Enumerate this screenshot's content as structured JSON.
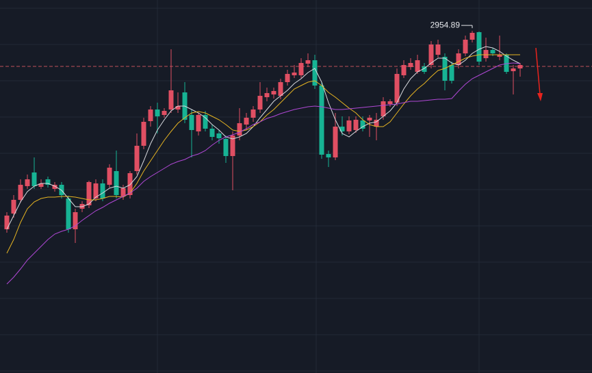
{
  "chart_data": {
    "type": "candlestick",
    "ylim": [
      2455,
      3000
    ],
    "up_color": "#e04f63",
    "down_color": "#17b394",
    "open": [
      2665,
      2688,
      2708,
      2728,
      2748,
      2727,
      2738,
      2724,
      2730,
      2710,
      2665,
      2695,
      2700,
      2710,
      2732,
      2730,
      2750,
      2713,
      2715,
      2750,
      2787,
      2823,
      2840,
      2832,
      2840,
      2840,
      2865,
      2832,
      2808,
      2832,
      2812,
      2805,
      2797,
      2772,
      2802,
      2818,
      2828,
      2840,
      2858,
      2862,
      2860,
      2880,
      2890,
      2890,
      2907,
      2912,
      2875,
      2775,
      2770,
      2815,
      2808,
      2810,
      2824,
      2824,
      2815,
      2830,
      2848,
      2850,
      2890,
      2902,
      2895,
      2903,
      2905,
      2920,
      2917,
      2905,
      2905,
      2922,
      2942,
      2953,
      2915,
      2927,
      2917,
      2920,
      2896,
      2900
    ],
    "high": [
      2690,
      2715,
      2738,
      2745,
      2770,
      2738,
      2742,
      2734,
      2734,
      2714,
      2695,
      2706,
      2736,
      2738,
      2738,
      2760,
      2780,
      2730,
      2750,
      2805,
      2828,
      2845,
      2850,
      2842,
      2928,
      2865,
      2880,
      2840,
      2835,
      2838,
      2818,
      2810,
      2802,
      2808,
      2842,
      2835,
      2845,
      2880,
      2872,
      2872,
      2885,
      2898,
      2905,
      2915,
      2922,
      2920,
      2880,
      2780,
      2835,
      2830,
      2830,
      2830,
      2830,
      2832,
      2835,
      2858,
      2855,
      2900,
      2912,
      2915,
      2920,
      2908,
      2940,
      2942,
      2922,
      2910,
      2928,
      2948,
      2954.89,
      2954,
      2945,
      2930,
      2948,
      2922,
      2905,
      2908
    ],
    "low": [
      2660,
      2682,
      2704,
      2724,
      2724,
      2724,
      2726,
      2720,
      2710,
      2660,
      2645,
      2690,
      2696,
      2706,
      2706,
      2726,
      2710,
      2708,
      2710,
      2745,
      2782,
      2815,
      2805,
      2828,
      2835,
      2835,
      2820,
      2770,
      2802,
      2808,
      2795,
      2790,
      2762,
      2722,
      2795,
      2810,
      2822,
      2835,
      2852,
      2856,
      2855,
      2875,
      2886,
      2886,
      2902,
      2870,
      2768,
      2756,
      2766,
      2802,
      2804,
      2806,
      2808,
      2800,
      2795,
      2825,
      2844,
      2845,
      2886,
      2898,
      2892,
      2892,
      2900,
      2916,
      2868,
      2878,
      2900,
      2918,
      2938,
      2905,
      2910,
      2918,
      2912,
      2892,
      2862,
      2888
    ],
    "close": [
      2685,
      2708,
      2730,
      2738,
      2728,
      2732,
      2730,
      2730,
      2715,
      2665,
      2690,
      2702,
      2734,
      2732,
      2710,
      2755,
      2715,
      2725,
      2747,
      2787,
      2822,
      2840,
      2830,
      2838,
      2868,
      2845,
      2825,
      2810,
      2832,
      2812,
      2800,
      2798,
      2772,
      2802,
      2820,
      2828,
      2840,
      2860,
      2864,
      2867,
      2880,
      2892,
      2894,
      2908,
      2912,
      2875,
      2774,
      2770,
      2815,
      2808,
      2824,
      2825,
      2812,
      2828,
      2825,
      2852,
      2852,
      2892,
      2905,
      2908,
      2912,
      2895,
      2935,
      2935,
      2882,
      2882,
      2922,
      2942,
      2952,
      2910,
      2927,
      2922,
      2920,
      2895,
      2900,
      2905
    ],
    "lines": [
      {
        "color": "#d9dbe0",
        "values": [
          2665,
          2685,
          2705,
          2720,
          2728,
          2732,
          2732,
          2728,
          2722,
          2710,
          2698,
          2698,
          2702,
          2712,
          2718,
          2725,
          2728,
          2725,
          2730,
          2742,
          2765,
          2790,
          2810,
          2825,
          2838,
          2845,
          2845,
          2840,
          2835,
          2828,
          2818,
          2810,
          2800,
          2797,
          2800,
          2805,
          2815,
          2828,
          2840,
          2852,
          2860,
          2868,
          2878,
          2885,
          2894,
          2900,
          2880,
          2850,
          2825,
          2805,
          2800,
          2808,
          2815,
          2820,
          2822,
          2830,
          2838,
          2850,
          2870,
          2885,
          2895,
          2900,
          2908,
          2915,
          2915,
          2908,
          2905,
          2912,
          2922,
          2928,
          2932,
          2930,
          2925,
          2918,
          2912,
          2907
        ]
      },
      {
        "color": "#e6b422",
        "values": [
          2630,
          2650,
          2675,
          2695,
          2705,
          2710,
          2712,
          2712,
          2713,
          2713,
          2712,
          2710,
          2708,
          2708,
          2710,
          2713,
          2713,
          2712,
          2718,
          2732,
          2750,
          2765,
          2780,
          2795,
          2808,
          2820,
          2828,
          2835,
          2837,
          2835,
          2830,
          2825,
          2818,
          2810,
          2808,
          2810,
          2815,
          2822,
          2832,
          2840,
          2850,
          2860,
          2870,
          2875,
          2880,
          2882,
          2875,
          2865,
          2858,
          2850,
          2842,
          2835,
          2825,
          2818,
          2815,
          2815,
          2822,
          2835,
          2848,
          2860,
          2870,
          2878,
          2888,
          2897,
          2900,
          2905,
          2910,
          2915,
          2918,
          2920,
          2920,
          2920,
          2920,
          2920,
          2920,
          2920
        ]
      },
      {
        "color": "#b048d6",
        "values": [
          2585,
          2595,
          2607,
          2620,
          2630,
          2640,
          2650,
          2658,
          2662,
          2665,
          2670,
          2678,
          2685,
          2692,
          2697,
          2703,
          2708,
          2713,
          2718,
          2725,
          2735,
          2742,
          2748,
          2754,
          2760,
          2764,
          2767,
          2772,
          2775,
          2780,
          2788,
          2795,
          2800,
          2803,
          2807,
          2812,
          2818,
          2822,
          2827,
          2830,
          2834,
          2837,
          2840,
          2842,
          2844,
          2845,
          2844,
          2842,
          2840,
          2840,
          2841,
          2842,
          2843,
          2844,
          2845,
          2846,
          2847,
          2848,
          2850,
          2852,
          2852,
          2853,
          2854,
          2855,
          2855,
          2856,
          2867,
          2877,
          2885,
          2890,
          2895,
          2900,
          2905,
          2907,
          2908,
          2907
        ]
      }
    ],
    "reference_line": {
      "value": 2903,
      "color": "#c0505a"
    }
  }
}
